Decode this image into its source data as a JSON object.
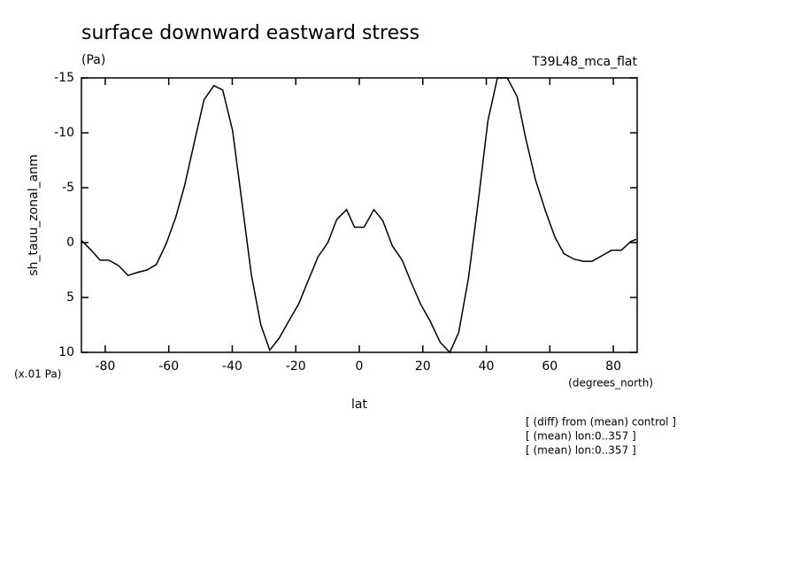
{
  "chart_data": {
    "type": "line",
    "title": "surface downward eastward stress",
    "subtitle": "(Pa)",
    "model": "T39L48_mca_flat",
    "y_label": "sh_tauu_zonal_anm",
    "y_units": "(x.01 Pa)",
    "x_units": "(degrees_north)",
    "x_label": "lat",
    "notes": [
      "[ (diff) from (mean) control ]",
      "[ (mean) lon:0..357 ]",
      "[ (mean) lon:0..357 ]"
    ],
    "xlim": [
      -87.5,
      87.5
    ],
    "ylim": [
      -15,
      10
    ],
    "y_reversed": true,
    "xticks": [
      -80,
      -60,
      -40,
      -20,
      0,
      20,
      40,
      60,
      80
    ],
    "yticks": [
      -15,
      -10,
      -5,
      0,
      5,
      10
    ],
    "x": [
      -87.5,
      -84.4,
      -81.6,
      -78.9,
      -75.8,
      -72.8,
      -69.7,
      -66.9,
      -63.9,
      -60.8,
      -57.8,
      -55.0,
      -51.9,
      -48.9,
      -45.8,
      -43.0,
      -39.9,
      -37.1,
      -34.0,
      -31.0,
      -28.2,
      -25.2,
      -22.1,
      -19.1,
      -16.0,
      -13.0,
      -9.9,
      -7.1,
      -4.0,
      -1.5,
      1.5,
      4.6,
      7.4,
      10.4,
      13.5,
      16.3,
      19.3,
      22.4,
      25.5,
      28.5,
      31.3,
      34.4,
      37.4,
      40.5,
      43.5,
      46.6,
      49.7,
      52.4,
      55.5,
      58.6,
      61.6,
      64.4,
      67.5,
      70.5,
      73.3,
      76.4,
      79.4,
      82.5,
      85.5,
      87.2
    ],
    "series": [
      {
        "color": "#000000",
        "values": [
          -0.2,
          0.7,
          1.6,
          1.6,
          2.1,
          3.0,
          2.7,
          2.5,
          2.0,
          0.1,
          -2.3,
          -5.2,
          -9.2,
          -13.0,
          -14.3,
          -13.9,
          -10.2,
          -4.0,
          2.9,
          7.5,
          9.8,
          8.7,
          7.1,
          5.6,
          3.4,
          1.3,
          0.0,
          -2.1,
          -3.0,
          -1.4,
          -1.4,
          -3.0,
          -2.0,
          0.3,
          1.6,
          3.6,
          5.6,
          7.2,
          9.1,
          10.0,
          8.2,
          3.2,
          -3.6,
          -11.1,
          -15.0,
          -15.0,
          -13.3,
          -9.5,
          -5.7,
          -2.9,
          -0.5,
          1.0,
          1.5,
          1.7,
          1.7,
          1.2,
          0.7,
          0.7,
          -0.1,
          -0.3
        ]
      }
    ]
  }
}
